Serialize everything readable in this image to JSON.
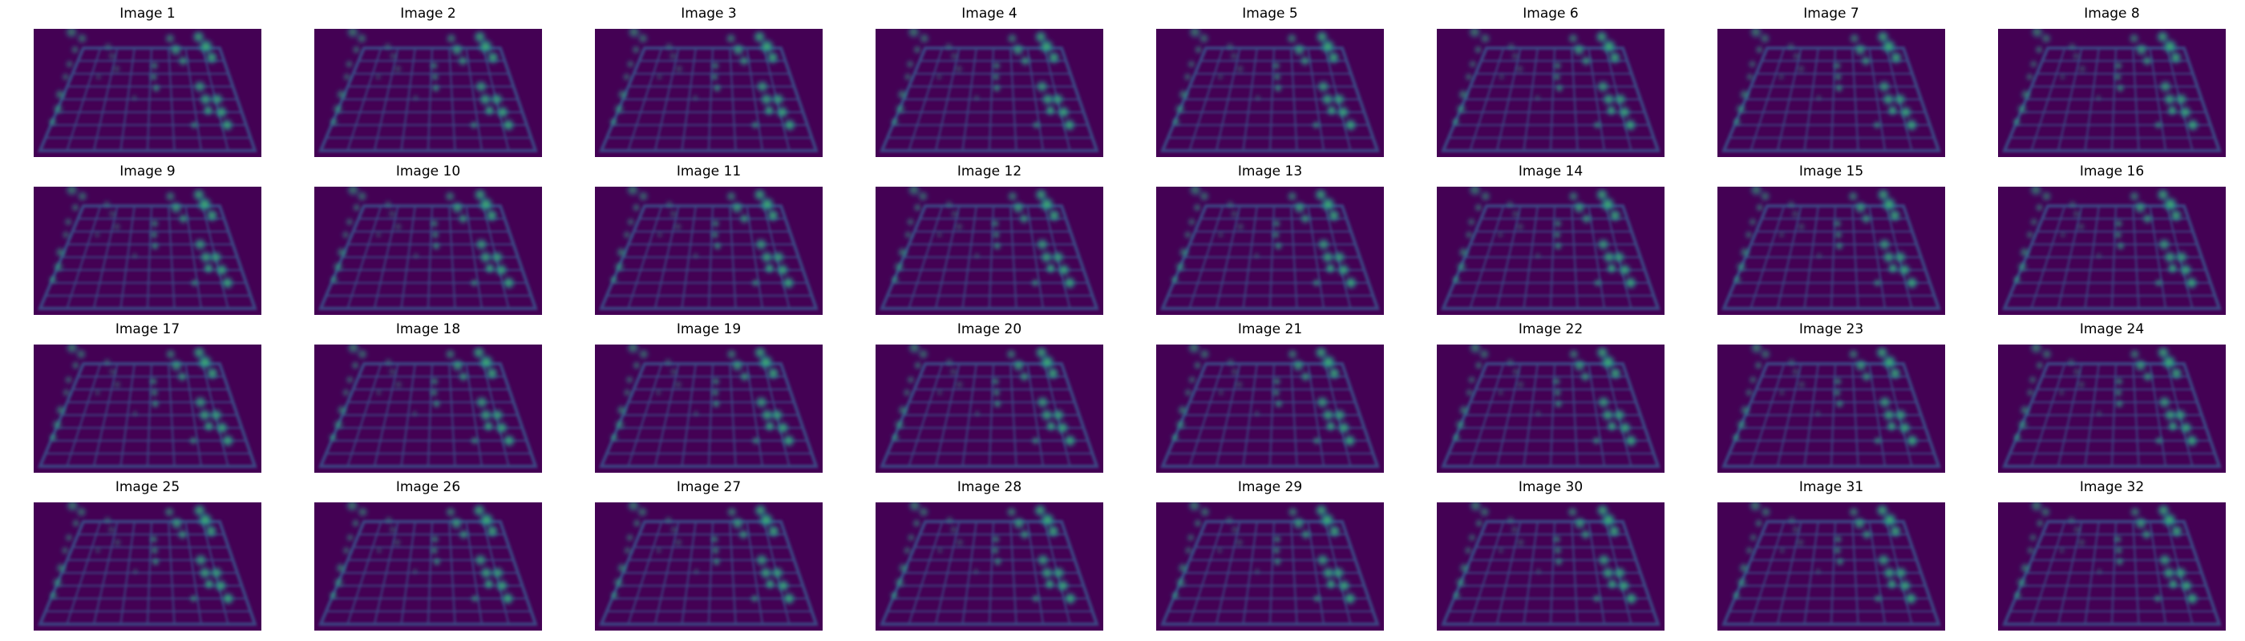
{
  "figure": {
    "rows": 4,
    "columns": 8,
    "background_color": "#ffffff",
    "image_background_color": "#440154",
    "image_colormap": "viridis",
    "image_content": "blurred-heatmap-chessboard-perspective",
    "panels": [
      {
        "title": "Image 1"
      },
      {
        "title": "Image 2"
      },
      {
        "title": "Image 3"
      },
      {
        "title": "Image 4"
      },
      {
        "title": "Image 5"
      },
      {
        "title": "Image 6"
      },
      {
        "title": "Image 7"
      },
      {
        "title": "Image 8"
      },
      {
        "title": "Image 9"
      },
      {
        "title": "Image 10"
      },
      {
        "title": "Image 11"
      },
      {
        "title": "Image 12"
      },
      {
        "title": "Image 13"
      },
      {
        "title": "Image 14"
      },
      {
        "title": "Image 15"
      },
      {
        "title": "Image 16"
      },
      {
        "title": "Image 17"
      },
      {
        "title": "Image 18"
      },
      {
        "title": "Image 19"
      },
      {
        "title": "Image 20"
      },
      {
        "title": "Image 21"
      },
      {
        "title": "Image 22"
      },
      {
        "title": "Image 23"
      },
      {
        "title": "Image 24"
      },
      {
        "title": "Image 25"
      },
      {
        "title": "Image 26"
      },
      {
        "title": "Image 27"
      },
      {
        "title": "Image 28"
      },
      {
        "title": "Image 29"
      },
      {
        "title": "Image 30"
      },
      {
        "title": "Image 31"
      },
      {
        "title": "Image 32"
      }
    ]
  }
}
